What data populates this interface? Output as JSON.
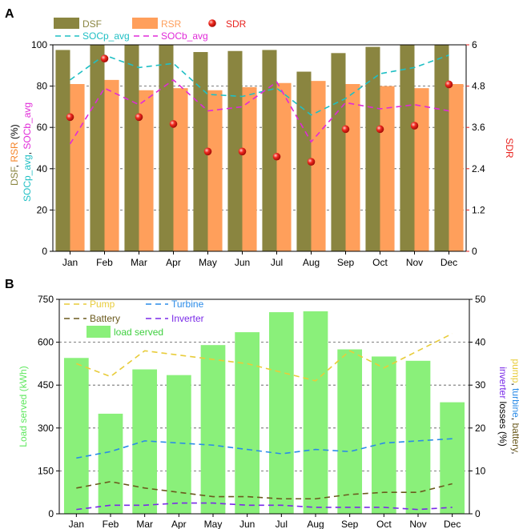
{
  "chart_data": [
    {
      "panel": "A",
      "type": "bar",
      "categories": [
        "Jan",
        "Feb",
        "Mar",
        "Apr",
        "May",
        "Jun",
        "Jul",
        "Aug",
        "Sep",
        "Oct",
        "Nov",
        "Dec"
      ],
      "ylim": [
        0,
        100
      ],
      "yticks": [
        "0",
        "20",
        "40",
        "60",
        "80",
        "100"
      ],
      "y2lim": [
        0,
        6
      ],
      "y2ticks": [
        "0",
        "1.2",
        "2.4",
        "3.6",
        "4.8",
        "6"
      ],
      "ylabel_parts": [
        {
          "text": "DSF",
          "color": "#8a8540"
        },
        {
          "text": ", ",
          "color": "#000000"
        },
        {
          "text": "RSR",
          "color": "#f5862b"
        },
        {
          "text": " (%)",
          "color": "#000000"
        }
      ],
      "ylabel2_parts": [
        {
          "text": "SOCp_avg",
          "color": "#1fbfc4"
        },
        {
          "text": ", ",
          "color": "#000000"
        },
        {
          "text": "SOCb_avg",
          "color": "#e02ad8"
        }
      ],
      "y2label": "SDR",
      "y2color": "#e8231f",
      "grid": true,
      "series": [
        {
          "name": "DSF",
          "kind": "bar",
          "color": "#8a8540",
          "values": [
            97.5,
            100,
            100,
            100,
            96.5,
            97,
            97.5,
            87,
            96,
            99,
            100,
            100
          ]
        },
        {
          "name": "RSR",
          "kind": "bar",
          "color": "#ff9f5b",
          "values": [
            81,
            83,
            78,
            79,
            78,
            79.5,
            81.5,
            82.5,
            81,
            80,
            79,
            81
          ]
        },
        {
          "name": "SDR",
          "kind": "scatter",
          "axis": "right",
          "color": "#e8231f",
          "values": [
            3.9,
            5.6,
            3.9,
            3.7,
            2.9,
            2.9,
            2.75,
            2.6,
            3.55,
            3.55,
            3.65,
            4.85
          ]
        },
        {
          "name": "SOCp_avg",
          "kind": "line",
          "color": "#1fbfc4",
          "values": [
            83,
            95,
            89,
            91,
            76,
            75,
            79,
            66,
            74,
            86,
            89,
            95
          ]
        },
        {
          "name": "SOCb_avg",
          "kind": "line",
          "color": "#e02ad8",
          "values": [
            52,
            79,
            71,
            83,
            68,
            70,
            82,
            53,
            72,
            69,
            71,
            68
          ]
        }
      ],
      "legend": {
        "placement": "top-left"
      }
    },
    {
      "panel": "B",
      "type": "bar",
      "categories": [
        "Jan",
        "Feb",
        "Mar",
        "Apr",
        "May",
        "Jun",
        "Jul",
        "Aug",
        "Sep",
        "Oct",
        "Nov",
        "Dec"
      ],
      "ylim": [
        0,
        750
      ],
      "yticks": [
        "0",
        "150",
        "300",
        "450",
        "600",
        "750"
      ],
      "y2lim": [
        0,
        50
      ],
      "y2ticks": [
        "0",
        "10",
        "20",
        "30",
        "40",
        "50"
      ],
      "ylabel": "Load served (kWh)",
      "ylabel_color": "#5fe85f",
      "y2label_parts": [
        {
          "text": "pump",
          "color": "#e8cc3a"
        },
        {
          "text": ", ",
          "color": "#000000"
        },
        {
          "text": "turbine",
          "color": "#2a8be8"
        },
        {
          "text": ", ",
          "color": "#000000"
        },
        {
          "text": "battery",
          "color": "#6b5a1e"
        },
        {
          "text": ",",
          "color": "#000000"
        }
      ],
      "y2label_line2_parts": [
        {
          "text": "inverter",
          "color": "#7a2ae8"
        },
        {
          "text": " losses (%)",
          "color": "#000000"
        }
      ],
      "grid": true,
      "series": [
        {
          "name": "load served",
          "kind": "bar",
          "color": "#8af07a",
          "values": [
            545,
            350,
            505,
            485,
            590,
            635,
            705,
            708,
            575,
            550,
            535,
            390
          ]
        },
        {
          "name": "Pump",
          "kind": "line",
          "axis": "right",
          "color": "#e8cc3a",
          "values": [
            35,
            32,
            38,
            37,
            36,
            35,
            33,
            31,
            38,
            34,
            38,
            42
          ]
        },
        {
          "name": "Turbine",
          "kind": "line",
          "axis": "right",
          "color": "#2a8be8",
          "values": [
            13,
            14.5,
            17,
            16.5,
            16,
            15,
            14,
            15,
            14.5,
            16.5,
            17,
            17.5
          ]
        },
        {
          "name": "Battery",
          "kind": "line",
          "axis": "right",
          "color": "#6b5a1e",
          "values": [
            6,
            7.5,
            6,
            5,
            4,
            4,
            3.5,
            3.5,
            4.5,
            5,
            5,
            7
          ]
        },
        {
          "name": "Inverter",
          "kind": "line",
          "axis": "right",
          "color": "#7a2ae8",
          "values": [
            1,
            2,
            2,
            2.5,
            2.5,
            2,
            2,
            1.5,
            1.5,
            1.5,
            1,
            1.5
          ]
        }
      ],
      "legend": {
        "placement": "top-left"
      }
    }
  ]
}
